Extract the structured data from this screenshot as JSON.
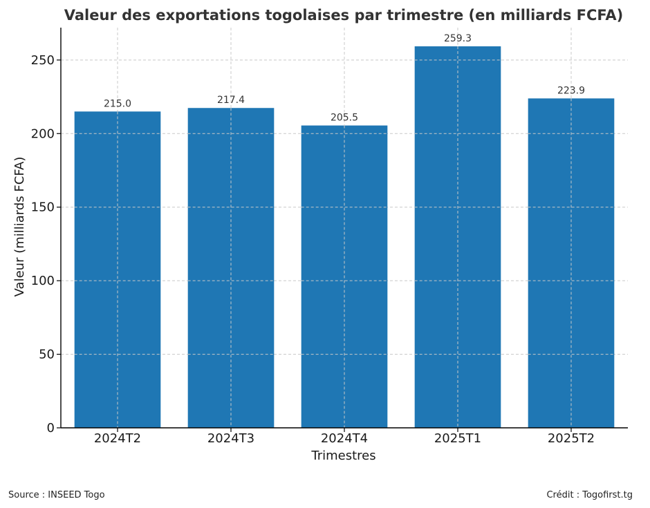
{
  "chart_data": {
    "type": "bar",
    "title": "Valeur des exportations togolaises par trimestre (en milliards FCFA)",
    "xlabel": "Trimestres",
    "ylabel": "Valeur (milliards FCFA)",
    "categories": [
      "2024T2",
      "2024T3",
      "2024T4",
      "2025T1",
      "2025T2"
    ],
    "values": [
      215.0,
      217.4,
      205.5,
      259.3,
      223.9
    ],
    "value_labels": [
      "215.0",
      "217.4",
      "205.5",
      "259.3",
      "223.9"
    ],
    "ylim": [
      0,
      272
    ],
    "yticks": [
      0,
      50,
      100,
      150,
      200,
      250
    ],
    "grid": true,
    "bar_color": "#1f77b4"
  },
  "footer": {
    "source": "Source : INSEED Togo",
    "credit": "Crédit : Togofirst.tg"
  }
}
